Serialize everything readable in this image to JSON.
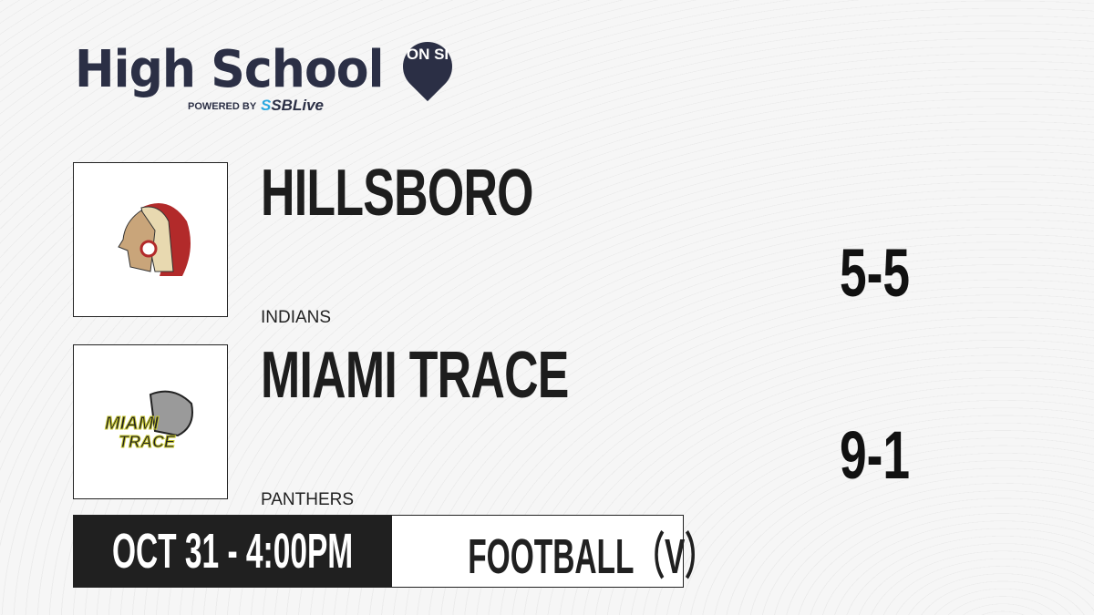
{
  "brand": {
    "title": "High School",
    "badge": "ON SI",
    "powered_by": "POWERED BY",
    "partner": "SBLive",
    "colors": {
      "navy": "#2b2f45",
      "partner_blue": "#2aa8e0"
    }
  },
  "teams": [
    {
      "name": "HILLSBORO",
      "mascot": "INDIANS",
      "record": "5-5",
      "logo": "indian-head-logo",
      "logo_colors": [
        "#b22a2a",
        "#e8d9b0"
      ]
    },
    {
      "name": "MIAMI TRACE",
      "mascot": "PANTHERS",
      "record": "9-1",
      "logo": "panther-logo",
      "logo_colors": [
        "#c8c830",
        "#888888"
      ]
    }
  ],
  "game": {
    "datetime": "OCT 31 - 4:00PM",
    "sport": "FOOTBALL（V）"
  }
}
